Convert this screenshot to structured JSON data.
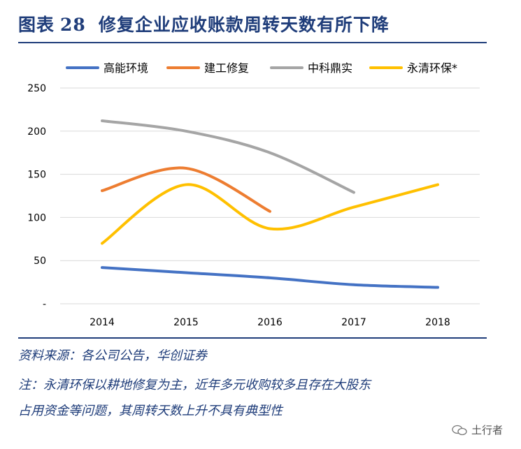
{
  "header": {
    "label": "图表",
    "number": "28",
    "title": "修复企业应收账款周转天数有所下降"
  },
  "chart_data": {
    "type": "line",
    "categories": [
      "2014",
      "2015",
      "2016",
      "2017",
      "2018"
    ],
    "y_ticks": [
      "-",
      "50",
      "100",
      "150",
      "200",
      "250"
    ],
    "ylim": [
      0,
      250
    ],
    "grid": true,
    "legend_position": "top",
    "series": [
      {
        "name": "高能环境",
        "color": "#4472c4",
        "values": [
          42,
          36,
          30,
          22,
          19
        ]
      },
      {
        "name": "建工修复",
        "color": "#ed7d31",
        "values": [
          131,
          157,
          107,
          null,
          null
        ]
      },
      {
        "name": "中科鼎实",
        "color": "#a5a5a5",
        "values": [
          212,
          200,
          175,
          129,
          null
        ]
      },
      {
        "name": "永清环保*",
        "color": "#ffc000",
        "values": [
          70,
          138,
          87,
          112,
          138
        ]
      }
    ]
  },
  "footer": {
    "source": "资料来源：各公司公告，华创证券",
    "note_line1": "注：永清环保以耕地修复为主，近年多元收购较多且存在大股东",
    "note_line2": "占用资金等问题，其周转天数上升不具有典型性",
    "watermark": "土行者"
  }
}
